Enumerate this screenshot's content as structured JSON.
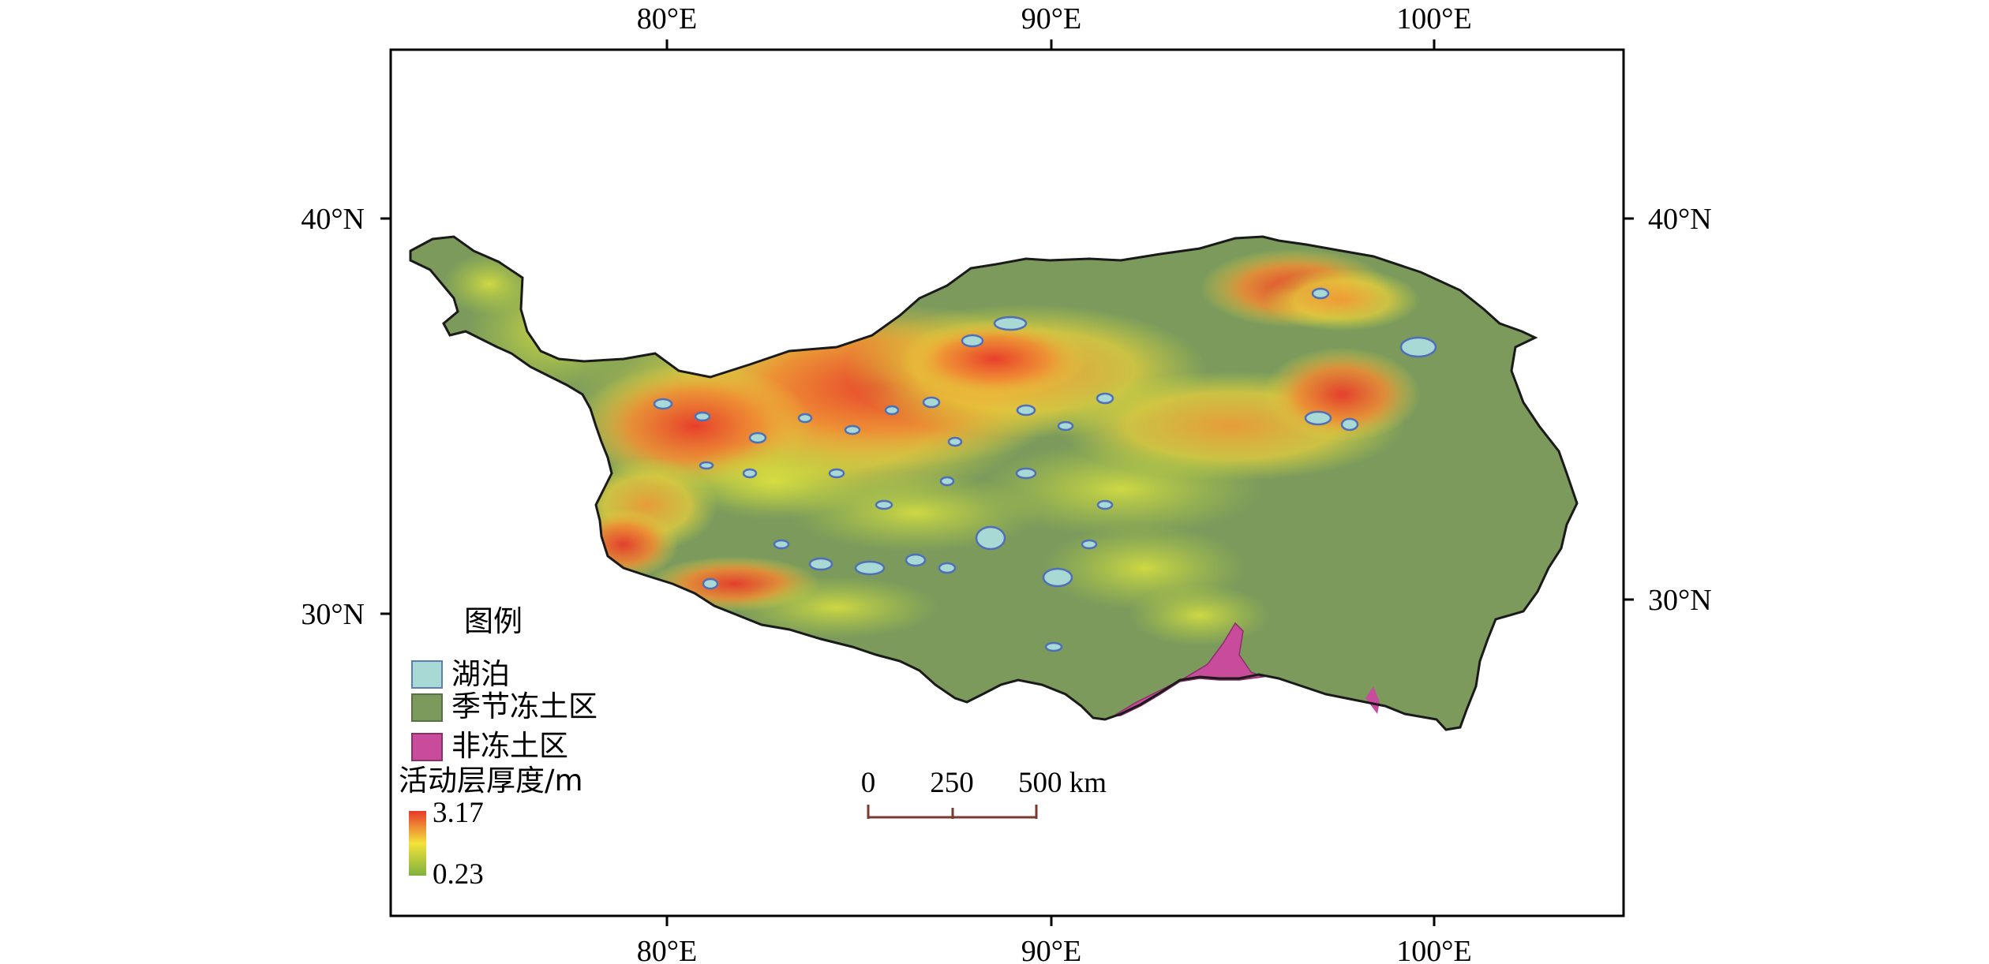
{
  "map": {
    "axes": {
      "top": [
        "80°E",
        "90°E",
        "100°E"
      ],
      "bottom": [
        "80°E",
        "90°E",
        "100°E"
      ],
      "left": [
        "40°N",
        "30°N"
      ],
      "right": [
        "40°N",
        "30°N"
      ]
    },
    "legend": {
      "title": "图例",
      "items": [
        {
          "label": "湖泊",
          "color": "#a9d9d4",
          "border": "#5b7fb0",
          "icon": "lake-swatch"
        },
        {
          "label": "季节冻土区",
          "color": "#7b9a5c",
          "border": "#5b6f45",
          "icon": "seasonal-frost-swatch"
        },
        {
          "label": "非冻土区",
          "color": "#c94c9c",
          "border": "#8a2f6b",
          "icon": "non-frozen-swatch"
        }
      ],
      "gradient": {
        "title": "活动层厚度/m",
        "max_label": "3.17",
        "min_label": "0.23",
        "max_color": "#e8392a",
        "mid_color": "#f3e23a",
        "min_color": "#7fb23e"
      }
    },
    "scale_bar": {
      "labels": [
        "0",
        "250",
        "500 km"
      ]
    },
    "colors": {
      "frame": "#000000",
      "plateau": "#7b9a5c",
      "outline": "#1a1a1a",
      "lake": "#a9d9d4",
      "lake_edge": "#4f6fb8",
      "non_frozen": "#c94c9c",
      "active_high": "#e8392a",
      "active_mid": "#f29b36",
      "active_low": "#d9e23e"
    }
  }
}
